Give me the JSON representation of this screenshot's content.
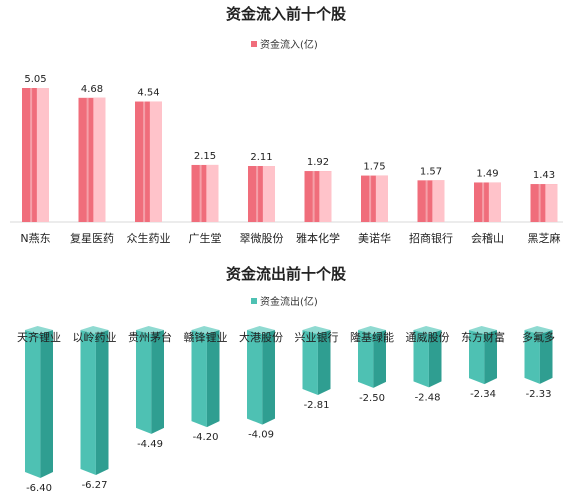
{
  "colors": {
    "inflow": "#f06d7b",
    "inflow_light": "#ffc3ca",
    "outflow": "#4ec1b3",
    "outflow_dark": "#2f9e91",
    "outflow_light": "#8fdad1"
  },
  "chart_data": [
    {
      "type": "bar",
      "title": "资金流入前十个股",
      "categories": [
        "N燕东",
        "复星医药",
        "众生药业",
        "广生堂",
        "翠微股份",
        "雅本化学",
        "美诺华",
        "招商银行",
        "会稽山",
        "黑芝麻"
      ],
      "series": [
        {
          "name": "资金流入(亿)",
          "values": [
            5.05,
            4.68,
            4.54,
            2.15,
            2.11,
            1.92,
            1.75,
            1.57,
            1.49,
            1.43
          ]
        }
      ],
      "value_labels": [
        "5.05",
        "4.68",
        "4.54",
        "2.15",
        "2.11",
        "1.92",
        "1.75",
        "1.57",
        "1.49",
        "1.43"
      ],
      "legend": "top-center",
      "grid": false,
      "ylim": [
        0,
        5.05
      ]
    },
    {
      "type": "bar",
      "title": "资金流出前十个股",
      "categories": [
        "天齐锂业",
        "以岭药业",
        "贵州茅台",
        "赣锋锂业",
        "大港股份",
        "兴业银行",
        "隆基绿能",
        "通威股份",
        "东方财富",
        "多氟多"
      ],
      "series": [
        {
          "name": "资金流出(亿)",
          "values": [
            -6.4,
            -6.27,
            -4.49,
            -4.2,
            -4.09,
            -2.81,
            -2.5,
            -2.48,
            -2.34,
            -2.33
          ]
        }
      ],
      "value_labels": [
        "-6.40",
        "-6.27",
        "-4.49",
        "-4.20",
        "-4.09",
        "-2.81",
        "-2.50",
        "-2.48",
        "-2.34",
        "-2.33"
      ],
      "legend": "top-center",
      "grid": false,
      "ylim": [
        -6.4,
        0
      ]
    }
  ]
}
